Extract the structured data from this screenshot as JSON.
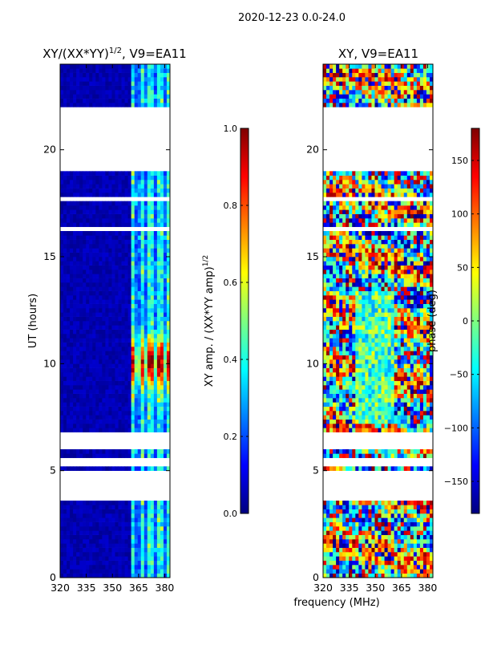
{
  "suptitle": "2020-12-23 0.0-24.0",
  "shared_xlabel": "frequency (MHz)",
  "colors": {
    "flag_white": "#ffffff",
    "jet": [
      "#00007f",
      "#0000ff",
      "#007fff",
      "#00ffff",
      "#7fff7f",
      "#ffff00",
      "#ff7f00",
      "#ff0000",
      "#7f0000"
    ]
  },
  "chart_data": [
    {
      "type": "heatmap",
      "title_main": "XY/(XX*YY)",
      "title_sup": "1/2",
      "title_suffix": ", V9=EA11",
      "xlabel": "",
      "ylabel": "UT (hours)",
      "xlim": [
        320,
        383
      ],
      "ylim": [
        0,
        24
      ],
      "xticks": [
        320,
        335,
        350,
        365,
        380
      ],
      "xtick_labels": [
        "320",
        "335",
        "350",
        "365",
        "380"
      ],
      "yticks": [
        0,
        5,
        10,
        15,
        20
      ],
      "ytick_labels": [
        "0",
        "5",
        "10",
        "15",
        "20"
      ],
      "description": "Normalized cross-hand amplitude vs frequency and UT; background ~0.0-0.1, bright channels between 360 and 383 MHz, peak near 10 UT",
      "colorbar": {
        "label_main": "XY amp. / (XX*YY amp)",
        "label_sup": "1/2",
        "range": [
          0.0,
          1.0
        ],
        "ticks": [
          0.0,
          0.2,
          0.4,
          0.6,
          0.8,
          1.0
        ],
        "tick_labels": [
          "0.0",
          "0.2",
          "0.4",
          "0.6",
          "0.8",
          "1.0"
        ]
      }
    },
    {
      "type": "heatmap",
      "title": "XY, V9=EA11",
      "xlabel": "frequency (MHz)",
      "ylabel": "",
      "xlim": [
        320,
        383
      ],
      "ylim": [
        0,
        24
      ],
      "xticks": [
        320,
        335,
        350,
        365,
        380
      ],
      "xtick_labels": [
        "320",
        "335",
        "350",
        "365",
        "380"
      ],
      "yticks": [
        0,
        5,
        10,
        15,
        20
      ],
      "ytick_labels": [
        "0",
        "5",
        "10",
        "15",
        "20"
      ],
      "description": "Cross-hand phase vs frequency and UT, values spanning -180 to 180 degrees",
      "colorbar": {
        "label": "phase (deg)",
        "range": [
          -180,
          180
        ],
        "ticks": [
          -150,
          -100,
          -50,
          0,
          50,
          100,
          150
        ],
        "tick_labels": [
          "−150",
          "−100",
          "−50",
          "0",
          "50",
          "100",
          "150"
        ]
      }
    }
  ]
}
